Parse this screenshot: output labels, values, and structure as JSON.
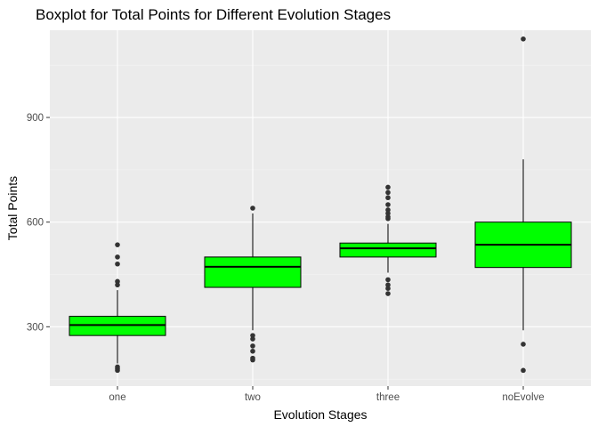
{
  "chart_data": {
    "type": "boxplot",
    "title": "Boxplot for Total Points for Different Evolution Stages",
    "xlabel": "Evolution Stages",
    "ylabel": "Total Points",
    "ylim": [
      130,
      1150
    ],
    "yticks": [
      300,
      600,
      900
    ],
    "grid": true,
    "legend": "none",
    "colors": {
      "panel_bg": "#ebebeb",
      "grid_major": "#ffffff",
      "grid_minor": "#f5f5f5",
      "box_fill": "#00ff00",
      "box_stroke": "#000000",
      "outlier": "#333333"
    },
    "categories": [
      "one",
      "two",
      "three",
      "noEvolve"
    ],
    "boxes": [
      {
        "category": "one",
        "lower_whisker": 195,
        "q1": 275,
        "median": 305,
        "q3": 330,
        "upper_whisker": 405,
        "outliers": [
          175,
          180,
          185,
          420,
          430,
          480,
          500,
          535
        ]
      },
      {
        "category": "two",
        "lower_whisker": 290,
        "q1": 413,
        "median": 472,
        "q3": 500,
        "upper_whisker": 625,
        "outliers": [
          205,
          210,
          230,
          245,
          265,
          275,
          640
        ]
      },
      {
        "category": "three",
        "lower_whisker": 455,
        "q1": 500,
        "median": 525,
        "q3": 540,
        "upper_whisker": 595,
        "outliers": [
          395,
          410,
          420,
          435,
          610,
          615,
          625,
          635,
          650,
          670,
          685,
          700
        ]
      },
      {
        "category": "noEvolve",
        "lower_whisker": 290,
        "q1": 470,
        "median": 535,
        "q3": 600,
        "upper_whisker": 780,
        "outliers": [
          175,
          250,
          1125
        ]
      }
    ]
  }
}
